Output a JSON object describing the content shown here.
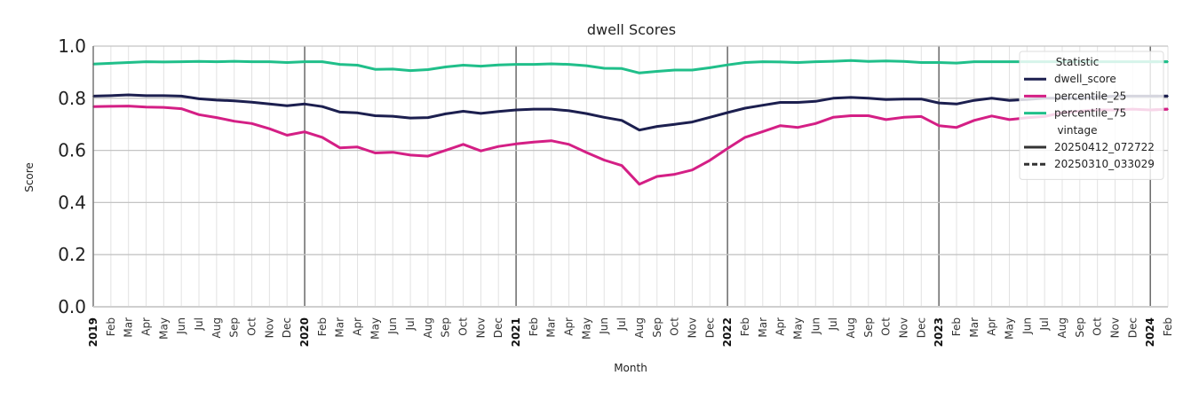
{
  "chart_data": {
    "type": "line",
    "title": "dwell Scores",
    "xlabel": "Month",
    "ylabel": "Score",
    "ylim": [
      0,
      1
    ],
    "yticks": [
      "0.0",
      "0.2",
      "0.4",
      "0.6",
      "0.8",
      "1.0"
    ],
    "grid": true,
    "legend_position": "top-right",
    "x": [
      "2019",
      "Feb",
      "Mar",
      "Apr",
      "May",
      "Jun",
      "Jul",
      "Aug",
      "Sep",
      "Oct",
      "Nov",
      "Dec",
      "2020",
      "Feb",
      "Mar",
      "Apr",
      "May",
      "Jun",
      "Jul",
      "Aug",
      "Sep",
      "Oct",
      "Nov",
      "Dec",
      "2021",
      "Feb",
      "Mar",
      "Apr",
      "May",
      "Jun",
      "Jul",
      "Aug",
      "Sep",
      "Oct",
      "Nov",
      "Dec",
      "2022",
      "Feb",
      "Mar",
      "Apr",
      "May",
      "Jun",
      "Jul",
      "Aug",
      "Sep",
      "Oct",
      "Nov",
      "Dec",
      "2023",
      "Feb",
      "Mar",
      "Apr",
      "May",
      "Jun",
      "Jul",
      "Aug",
      "Sep",
      "Oct",
      "Nov",
      "Dec",
      "2024",
      "Feb"
    ],
    "year_labels": [
      "2019",
      "2020",
      "2021",
      "2022",
      "2023",
      "2024"
    ],
    "series": [
      {
        "name": "dwell_score",
        "vintage": "20250412_072722",
        "color": "#1c1f4f",
        "dash": "solid",
        "values": [
          0.808,
          0.81,
          0.813,
          0.81,
          0.81,
          0.808,
          0.798,
          0.793,
          0.79,
          0.785,
          0.778,
          0.771,
          0.778,
          0.768,
          0.747,
          0.744,
          0.733,
          0.731,
          0.724,
          0.726,
          0.74,
          0.75,
          0.742,
          0.749,
          0.755,
          0.758,
          0.758,
          0.752,
          0.741,
          0.727,
          0.715,
          0.678,
          0.692,
          0.7,
          0.709,
          0.727,
          0.745,
          0.762,
          0.773,
          0.784,
          0.784,
          0.788,
          0.8,
          0.803,
          0.8,
          0.795,
          0.797,
          0.797,
          0.782,
          0.778,
          0.792,
          0.8,
          0.792,
          0.795,
          0.8,
          0.8,
          0.8,
          0.805,
          0.808,
          0.808,
          0.808,
          0.808
        ]
      },
      {
        "name": "percentile_25",
        "vintage": "20250412_072722",
        "color": "#d41f85",
        "dash": "solid",
        "values": [
          0.768,
          0.769,
          0.77,
          0.766,
          0.765,
          0.76,
          0.737,
          0.726,
          0.712,
          0.703,
          0.683,
          0.658,
          0.671,
          0.65,
          0.61,
          0.613,
          0.59,
          0.593,
          0.582,
          0.578,
          0.6,
          0.623,
          0.598,
          0.615,
          0.625,
          0.632,
          0.637,
          0.623,
          0.592,
          0.563,
          0.542,
          0.47,
          0.5,
          0.508,
          0.525,
          0.562,
          0.607,
          0.65,
          0.672,
          0.695,
          0.688,
          0.703,
          0.727,
          0.733,
          0.733,
          0.718,
          0.727,
          0.73,
          0.695,
          0.688,
          0.715,
          0.732,
          0.718,
          0.725,
          0.73,
          0.745,
          0.75,
          0.755,
          0.755,
          0.758,
          0.755,
          0.758
        ]
      },
      {
        "name": "percentile_75",
        "vintage": "20250412_072722",
        "color": "#20bf8a",
        "dash": "solid",
        "values": [
          0.931,
          0.934,
          0.937,
          0.94,
          0.939,
          0.94,
          0.941,
          0.94,
          0.942,
          0.94,
          0.94,
          0.937,
          0.94,
          0.94,
          0.93,
          0.927,
          0.911,
          0.912,
          0.906,
          0.91,
          0.92,
          0.927,
          0.923,
          0.928,
          0.93,
          0.93,
          0.932,
          0.93,
          0.925,
          0.915,
          0.914,
          0.897,
          0.903,
          0.908,
          0.908,
          0.917,
          0.928,
          0.937,
          0.94,
          0.939,
          0.937,
          0.94,
          0.942,
          0.945,
          0.941,
          0.943,
          0.941,
          0.937,
          0.937,
          0.935,
          0.94,
          0.94,
          0.94,
          0.94,
          0.94,
          0.94,
          0.94,
          0.94,
          0.94,
          0.94,
          0.94,
          0.94
        ]
      }
    ],
    "vintage_overlay": {
      "vintage": "20250310_033029",
      "dash": "dashed",
      "from_index": 60
    },
    "legend": {
      "groups": [
        {
          "heading": "Statistic",
          "items": [
            {
              "label": "dwell_score",
              "color": "#1c1f4f",
              "dash": "solid"
            },
            {
              "label": "percentile_25",
              "color": "#d41f85",
              "dash": "solid"
            },
            {
              "label": "percentile_75",
              "color": "#20bf8a",
              "dash": "solid"
            }
          ]
        },
        {
          "heading": "vintage",
          "items": [
            {
              "label": "20250412_072722",
              "color": "#333333",
              "dash": "solid"
            },
            {
              "label": "20250310_033029",
              "color": "#333333",
              "dash": "dashed"
            }
          ]
        }
      ]
    }
  }
}
